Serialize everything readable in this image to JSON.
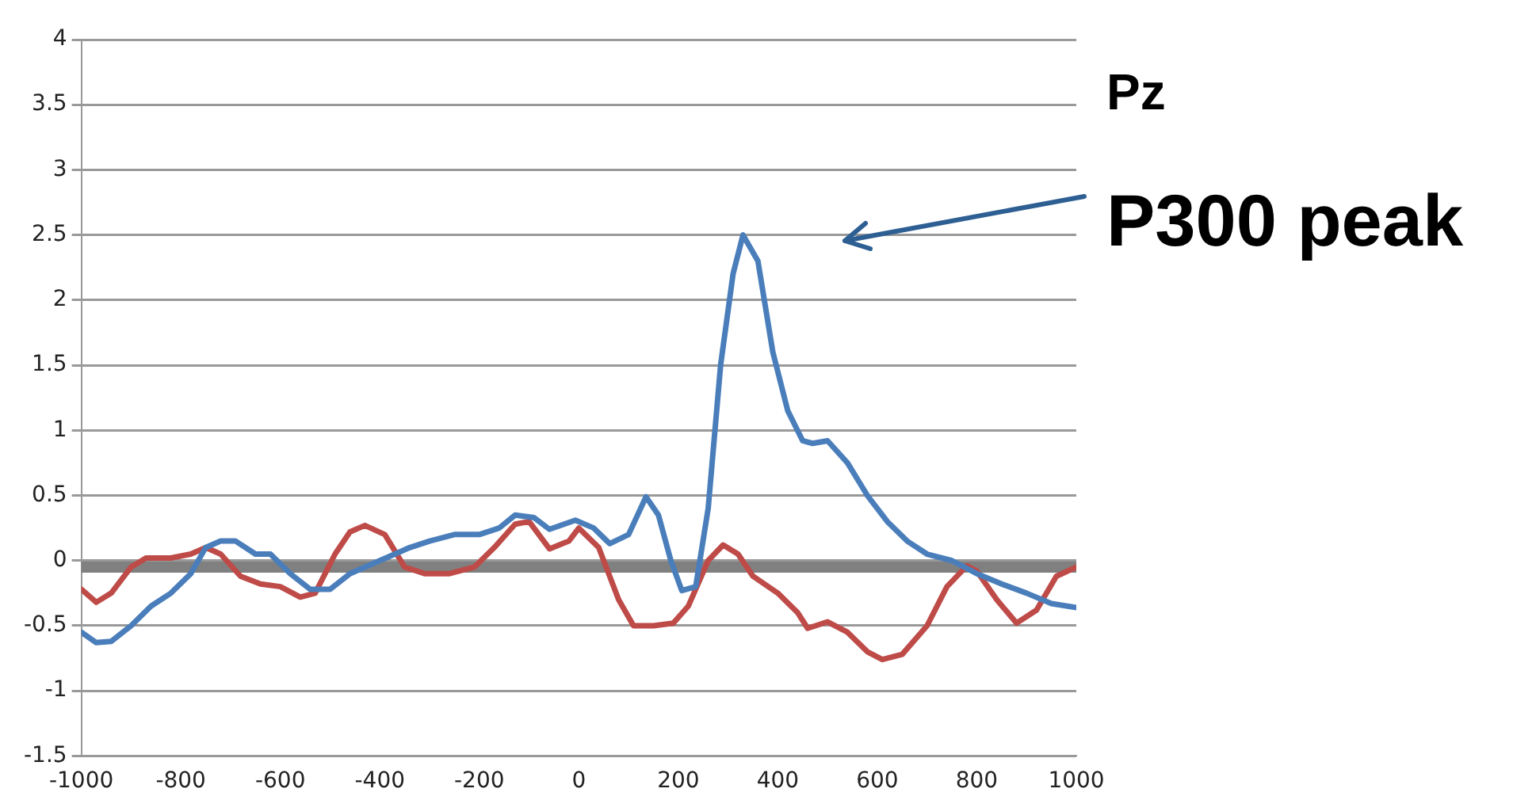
{
  "chart_data": {
    "type": "line",
    "title": "Pz",
    "xlim": [
      -1000,
      1000
    ],
    "xticks": [
      -1000,
      -800,
      -600,
      -400,
      -200,
      0,
      200,
      400,
      600,
      800,
      1000
    ],
    "ylim": [
      -1.5,
      4
    ],
    "yticks": [
      -1.5,
      -1,
      -0.5,
      0,
      0.5,
      1,
      1.5,
      2,
      2.5,
      3,
      3.5,
      4
    ],
    "grid": "y",
    "legend": false,
    "marker": "none",
    "line_style": "solid",
    "ref_lines": [
      {
        "axis": "y",
        "value": -0.05,
        "color": "#808080"
      }
    ],
    "annotations": [
      "P300 peak"
    ],
    "series": [
      {
        "color": "#4a7ebb",
        "x": [
          -1000,
          -970,
          -940,
          -900,
          -860,
          -820,
          -780,
          -750,
          -720,
          -690,
          -650,
          -620,
          -580,
          -540,
          -500,
          -460,
          -400,
          -340,
          -300,
          -250,
          -200,
          -160,
          -128,
          -90,
          -59,
          -7,
          30,
          62,
          100,
          135,
          160,
          185,
          207,
          235,
          260,
          285,
          310,
          330,
          360,
          390,
          420,
          450,
          470,
          500,
          540,
          580,
          620,
          660,
          700,
          750,
          800,
          850,
          900,
          950,
          1000
        ],
        "values": [
          -0.55,
          -0.63,
          -0.62,
          -0.5,
          -0.35,
          -0.25,
          -0.1,
          0.1,
          0.15,
          0.15,
          0.05,
          0.05,
          -0.1,
          -0.22,
          -0.22,
          -0.1,
          0.0,
          0.1,
          0.15,
          0.2,
          0.2,
          0.25,
          0.35,
          0.33,
          0.24,
          0.31,
          0.25,
          0.13,
          0.2,
          0.49,
          0.35,
          0.0,
          -0.23,
          -0.2,
          0.4,
          1.5,
          2.2,
          2.5,
          2.3,
          1.6,
          1.15,
          0.92,
          0.9,
          0.92,
          0.75,
          0.5,
          0.3,
          0.15,
          0.05,
          0.0,
          -0.1,
          -0.18,
          -0.25,
          -0.33,
          -0.36
        ]
      },
      {
        "color": "#be4b48",
        "x": [
          -1000,
          -970,
          -940,
          -900,
          -870,
          -820,
          -780,
          -750,
          -720,
          -680,
          -640,
          -600,
          -560,
          -530,
          -490,
          -460,
          -430,
          -390,
          -350,
          -310,
          -260,
          -210,
          -170,
          -128,
          -100,
          -59,
          -20,
          0,
          40,
          80,
          110,
          150,
          190,
          220,
          260,
          290,
          320,
          350,
          400,
          440,
          460,
          500,
          540,
          580,
          610,
          650,
          700,
          740,
          780,
          800,
          840,
          880,
          920,
          960,
          1000
        ],
        "values": [
          -0.22,
          -0.32,
          -0.25,
          -0.05,
          0.02,
          0.02,
          0.05,
          0.1,
          0.05,
          -0.12,
          -0.18,
          -0.2,
          -0.28,
          -0.25,
          0.05,
          0.22,
          0.27,
          0.2,
          -0.05,
          -0.1,
          -0.1,
          -0.05,
          0.1,
          0.28,
          0.3,
          0.09,
          0.15,
          0.25,
          0.1,
          -0.3,
          -0.5,
          -0.5,
          -0.48,
          -0.35,
          0.0,
          0.12,
          0.05,
          -0.12,
          -0.25,
          -0.4,
          -0.52,
          -0.47,
          -0.55,
          -0.7,
          -0.76,
          -0.72,
          -0.5,
          -0.2,
          -0.04,
          -0.08,
          -0.3,
          -0.48,
          -0.38,
          -0.12,
          -0.05
        ]
      }
    ]
  }
}
